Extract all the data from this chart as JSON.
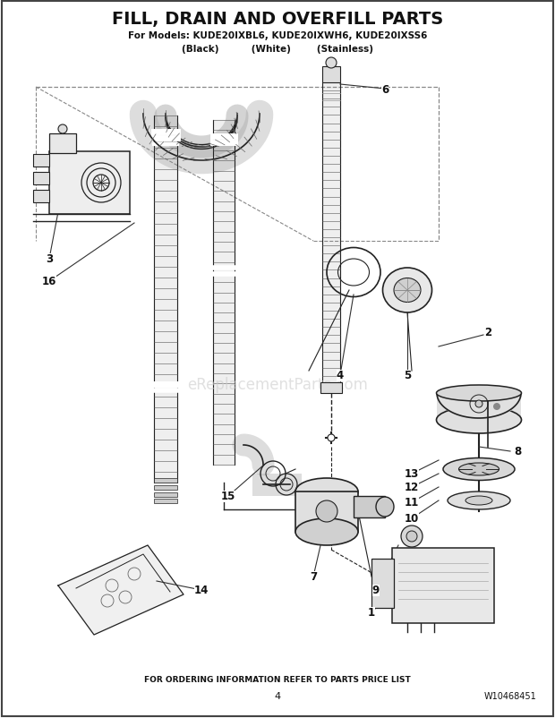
{
  "title": "FILL, DRAIN AND OVERFILL PARTS",
  "subtitle": "For Models: KUDE20IXBL6, KUDE20IXWH6, KUDE20IXSS6",
  "subtitle2": "(Black)          (White)        (Stainless)",
  "footer": "FOR ORDERING INFORMATION REFER TO PARTS PRICE LIST",
  "page_num": "4",
  "part_num": "W10468451",
  "watermark": "eReplacementParts.com",
  "bg_color": "#ffffff",
  "lc": "#222222"
}
